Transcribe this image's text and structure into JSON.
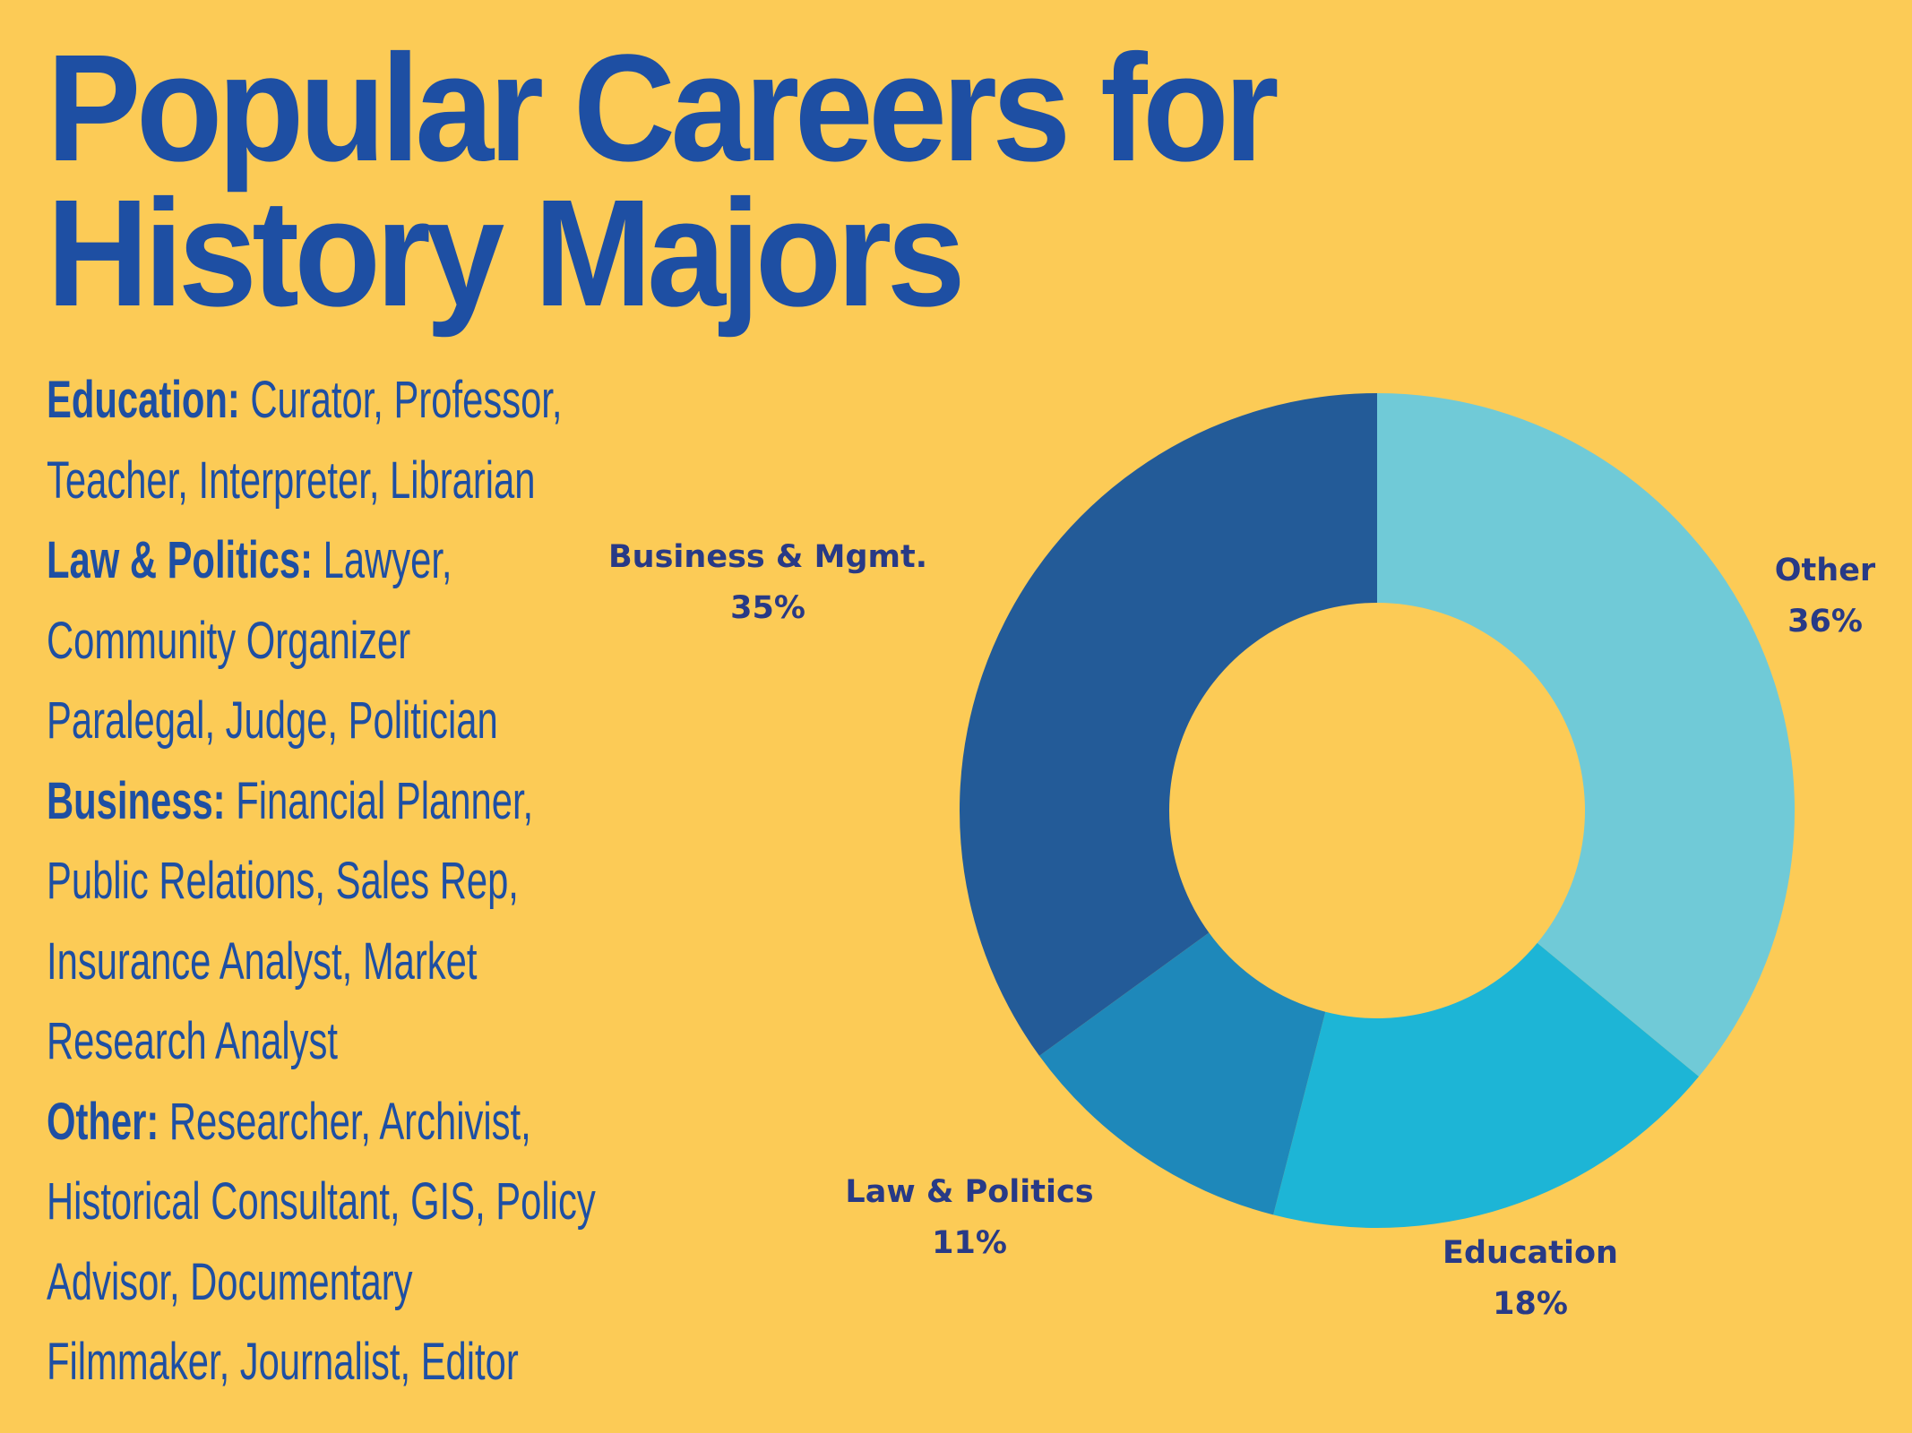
{
  "title_lines": [
    "Popular Careers for",
    "History Majors"
  ],
  "career_lines": [
    {
      "bold": "Education:",
      "text": " Curator, Professor,"
    },
    {
      "bold": "",
      "text": "Teacher, Interpreter, Librarian"
    },
    {
      "bold": "Law & Politics:",
      "text": " Lawyer,"
    },
    {
      "bold": "",
      "text": "Community Organizer"
    },
    {
      "bold": "",
      "text": "Paralegal, Judge, Politician"
    },
    {
      "bold": "Business:",
      "text": " Financial Planner,"
    },
    {
      "bold": "",
      "text": "Public Relations, Sales Rep,"
    },
    {
      "bold": "",
      "text": "Insurance Analyst, Market"
    },
    {
      "bold": "",
      "text": "Research Analyst"
    },
    {
      "bold": "Other:",
      "text": " Researcher, Archivist,"
    },
    {
      "bold": "",
      "text": "Historical Consultant, GIS, Policy"
    },
    {
      "bold": "",
      "text": "Advisor, Documentary"
    },
    {
      "bold": "",
      "text": "Filmmaker, Journalist, Editor"
    }
  ],
  "colors": {
    "background": "#fccb56",
    "text": "#1e4fa3",
    "label": "#283a86"
  },
  "chart_data": {
    "type": "pie",
    "variant": "donut",
    "start": "top, clockwise",
    "slices": [
      {
        "name": "Other",
        "value": 36,
        "label": "36%",
        "color": "#70cad7"
      },
      {
        "name": "Education",
        "value": 18,
        "label": "18%",
        "color": "#1db5d6"
      },
      {
        "name": "Law & Politics",
        "value": 11,
        "label": "11%",
        "color": "#1e88ba"
      },
      {
        "name": "Business & Mgmt.",
        "value": 35,
        "label": "35%",
        "color": "#235b98"
      }
    ]
  }
}
